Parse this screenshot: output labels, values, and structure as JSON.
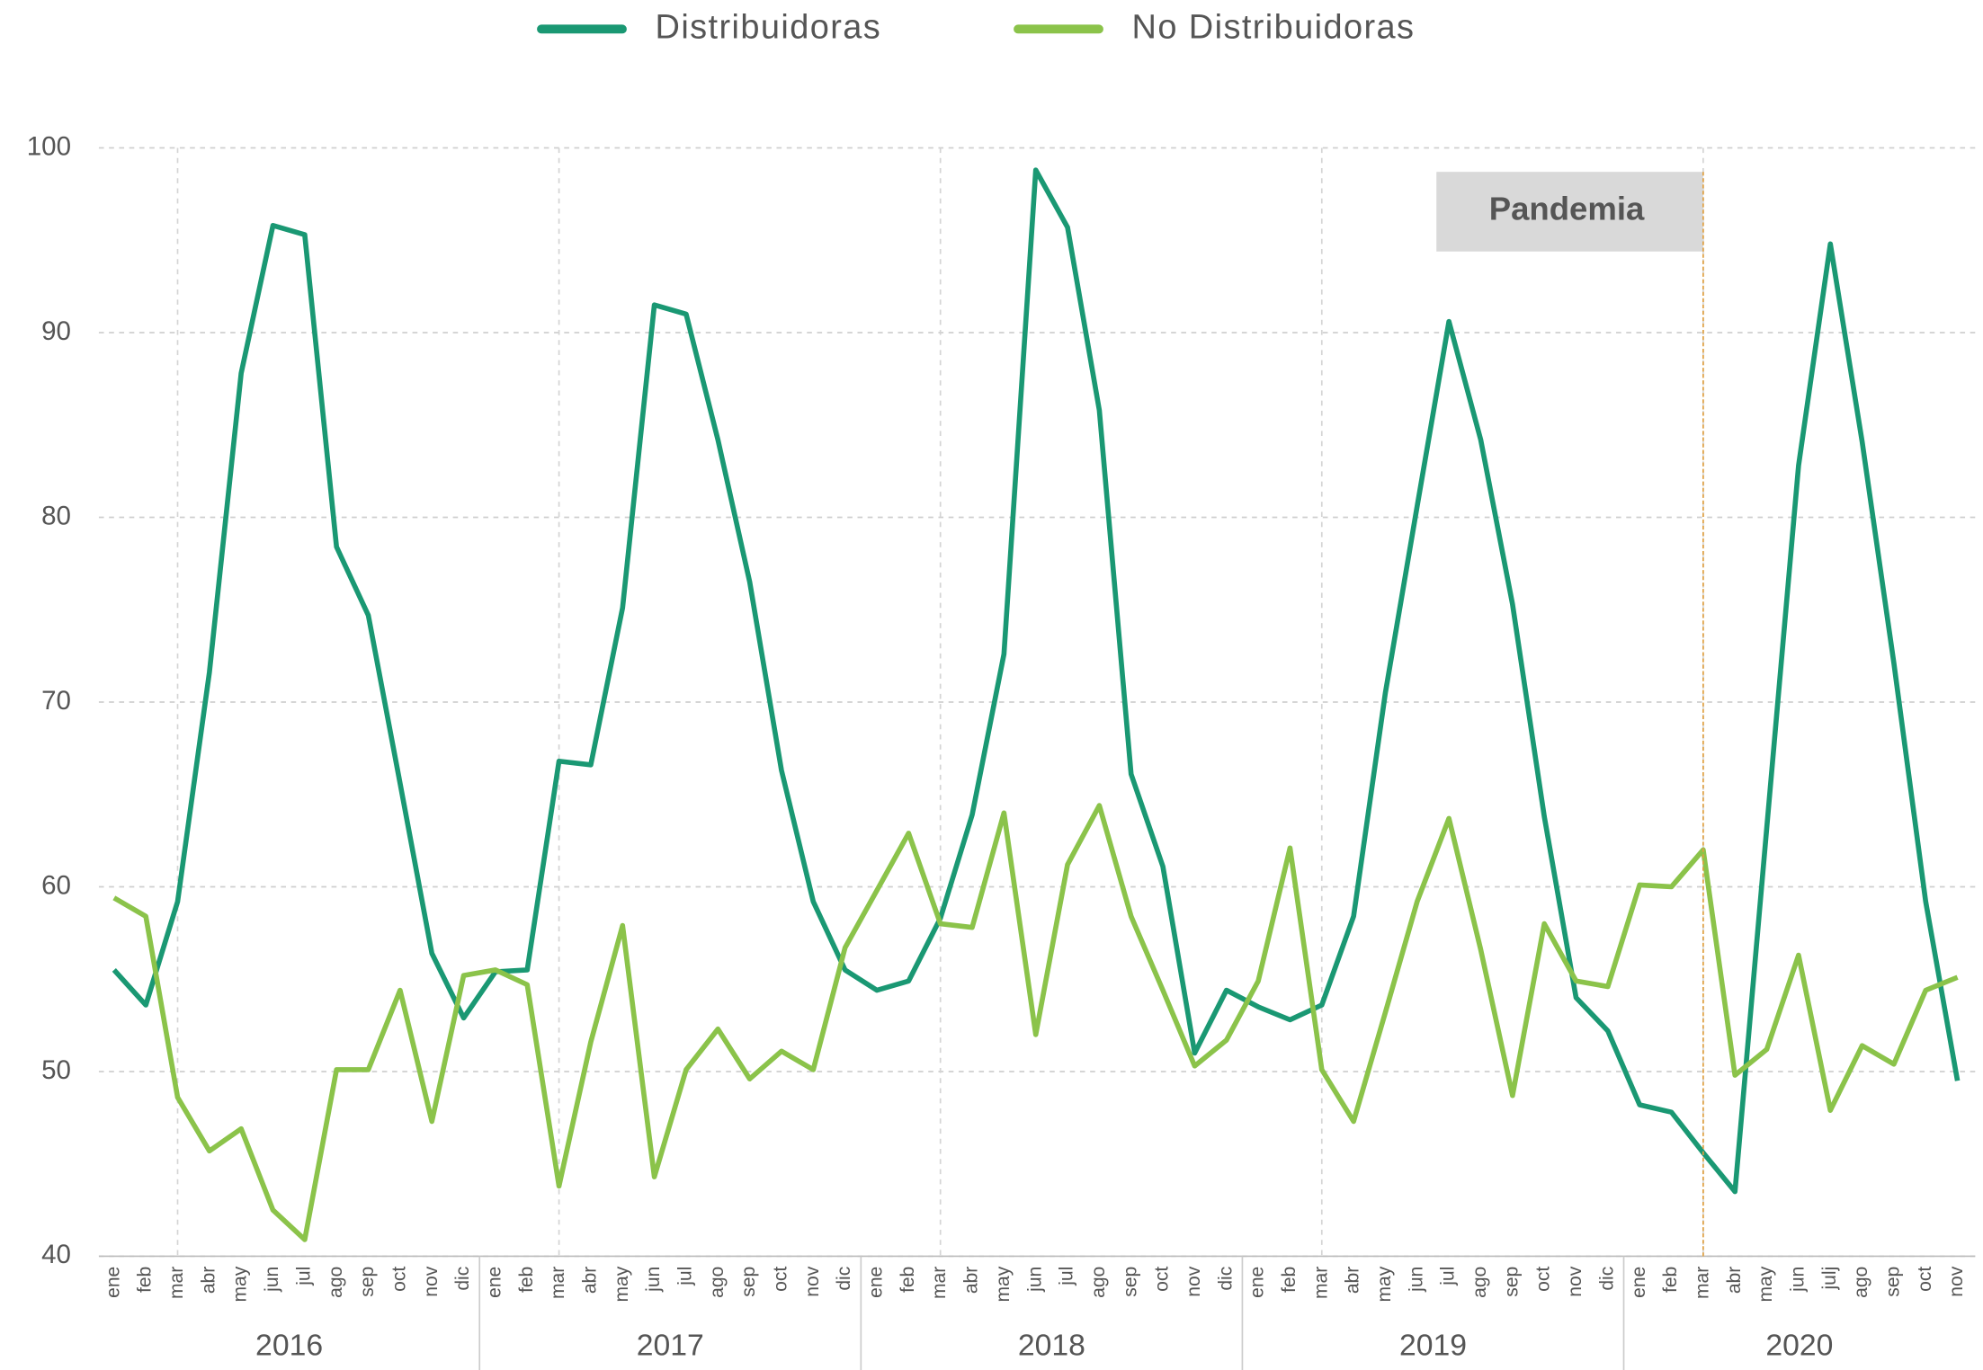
{
  "chart_data": {
    "type": "line",
    "categories": [
      "ene",
      "feb",
      "mar",
      "abr",
      "may",
      "jun",
      "jul",
      "ago",
      "sep",
      "oct",
      "nov",
      "dic",
      "ene",
      "feb",
      "mar",
      "abr",
      "may",
      "jun",
      "jul",
      "ago",
      "sep",
      "oct",
      "nov",
      "dic",
      "ene",
      "feb",
      "mar",
      "abr",
      "may",
      "jun",
      "jul",
      "ago",
      "sep",
      "oct",
      "nov",
      "dic",
      "ene",
      "feb",
      "mar",
      "abr",
      "may",
      "jun",
      "jul",
      "ago",
      "sep",
      "oct",
      "nov",
      "dic",
      "ene",
      "feb",
      "mar",
      "abr",
      "may",
      "jun",
      "julj",
      "ago",
      "sep",
      "oct",
      "nov"
    ],
    "groups": [
      "2016",
      "2017",
      "2018",
      "2019",
      "2020"
    ],
    "series": [
      {
        "name": "Distribuidoras",
        "color": "#1a9873",
        "values": [
          55.5,
          53.6,
          59.2,
          71.6,
          87.8,
          95.8,
          95.3,
          78.4,
          74.7,
          65.6,
          56.4,
          52.9,
          55.4,
          55.5,
          66.8,
          66.6,
          75.1,
          91.5,
          91.0,
          84.2,
          76.5,
          66.3,
          59.2,
          55.5,
          54.4,
          54.9,
          58.3,
          63.9,
          72.6,
          98.8,
          95.7,
          85.8,
          66.1,
          61.1,
          51.0,
          54.4,
          53.5,
          52.8,
          53.6,
          58.4,
          70.5,
          80.6,
          90.6,
          84.2,
          75.3,
          63.8,
          54.0,
          52.2,
          48.2,
          47.8,
          45.6,
          43.5,
          63.2,
          82.8,
          94.8,
          84.1,
          72.1,
          59.2,
          49.5
        ]
      },
      {
        "name": "No Distribuidoras",
        "color": "#8bc34a",
        "values": [
          59.4,
          58.4,
          48.6,
          45.7,
          46.9,
          42.5,
          40.9,
          50.1,
          50.1,
          54.4,
          47.3,
          55.2,
          55.5,
          54.7,
          43.8,
          51.6,
          57.9,
          44.3,
          50.1,
          52.3,
          49.6,
          51.1,
          50.1,
          56.7,
          59.8,
          62.9,
          58.0,
          57.8,
          64.0,
          52.0,
          61.2,
          64.4,
          58.4,
          54.4,
          50.3,
          51.7,
          54.9,
          62.1,
          50.1,
          47.3,
          53.2,
          59.2,
          63.7,
          56.6,
          48.7,
          58.0,
          54.9,
          54.6,
          60.1,
          60.0,
          62.0,
          49.8,
          51.2,
          56.3,
          47.9,
          51.4,
          50.4,
          54.4,
          55.1
        ]
      }
    ],
    "ylim": [
      40,
      100
    ],
    "yticks": [
      40,
      50,
      60,
      70,
      80,
      90,
      100
    ],
    "grid": true,
    "legend": "top",
    "annotation": {
      "text": "Pandemia",
      "x_index": 50,
      "color": "#e0a040"
    }
  }
}
